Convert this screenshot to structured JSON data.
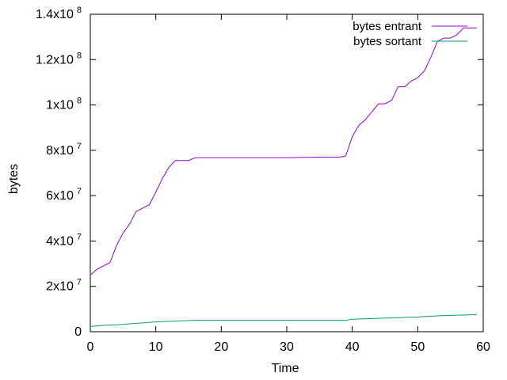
{
  "chart_data": {
    "type": "line",
    "title": "",
    "xlabel": "Time",
    "ylabel": "bytes",
    "xlim": [
      0,
      60
    ],
    "ylim": [
      0,
      140000000
    ],
    "x_ticks": [
      {
        "value": 0,
        "label": "0"
      },
      {
        "value": 10,
        "label": "10"
      },
      {
        "value": 20,
        "label": "20"
      },
      {
        "value": 30,
        "label": "30"
      },
      {
        "value": 40,
        "label": "40"
      },
      {
        "value": 50,
        "label": "50"
      },
      {
        "value": 60,
        "label": "60"
      }
    ],
    "y_ticks": [
      {
        "value": 0,
        "base": "0",
        "exp": ""
      },
      {
        "value": 20000000,
        "base": "2x10",
        "exp": "7"
      },
      {
        "value": 40000000,
        "base": "4x10",
        "exp": "7"
      },
      {
        "value": 60000000,
        "base": "6x10",
        "exp": "7"
      },
      {
        "value": 80000000,
        "base": "8x10",
        "exp": "7"
      },
      {
        "value": 100000000,
        "base": "1x10",
        "exp": "8"
      },
      {
        "value": 120000000,
        "base": "1.2x10",
        "exp": "8"
      },
      {
        "value": 140000000,
        "base": "1.4x10",
        "exp": "8"
      }
    ],
    "grid": false,
    "legend_position": "top-right",
    "series": [
      {
        "name": "bytes entrant",
        "color": "#9400d3",
        "points": [
          [
            0,
            25000000
          ],
          [
            1,
            27500000
          ],
          [
            2,
            29000000
          ],
          [
            3,
            30500000
          ],
          [
            4,
            38000000
          ],
          [
            5,
            43500000
          ],
          [
            6,
            47500000
          ],
          [
            7,
            53000000
          ],
          [
            8,
            54500000
          ],
          [
            9,
            56000000
          ],
          [
            10,
            61500000
          ],
          [
            11,
            67500000
          ],
          [
            12,
            72500000
          ],
          [
            13,
            75500000
          ],
          [
            14,
            75500000
          ],
          [
            15,
            75500000
          ],
          [
            16,
            76700000
          ],
          [
            20,
            76700000
          ],
          [
            25,
            76700000
          ],
          [
            30,
            76700000
          ],
          [
            35,
            77000000
          ],
          [
            38,
            77000000
          ],
          [
            39,
            77500000
          ],
          [
            40,
            86000000
          ],
          [
            41,
            91000000
          ],
          [
            42,
            93500000
          ],
          [
            43,
            97000000
          ],
          [
            44,
            100500000
          ],
          [
            45,
            100500000
          ],
          [
            46,
            102000000
          ],
          [
            47,
            108000000
          ],
          [
            48,
            108000000
          ],
          [
            49,
            110500000
          ],
          [
            50,
            112000000
          ],
          [
            51,
            115000000
          ],
          [
            52,
            121000000
          ],
          [
            53,
            128000000
          ],
          [
            54,
            129500000
          ],
          [
            55,
            129500000
          ],
          [
            56,
            131000000
          ],
          [
            57,
            134000000
          ],
          [
            58,
            134000000
          ],
          [
            59,
            134000000
          ]
        ]
      },
      {
        "name": "bytes sortant",
        "color": "#009e73",
        "points": [
          [
            0,
            2300000
          ],
          [
            2,
            2800000
          ],
          [
            4,
            3000000
          ],
          [
            6,
            3500000
          ],
          [
            8,
            3900000
          ],
          [
            10,
            4300000
          ],
          [
            12,
            4600000
          ],
          [
            14,
            4800000
          ],
          [
            16,
            5000000
          ],
          [
            20,
            5000000
          ],
          [
            30,
            5000000
          ],
          [
            35,
            5000000
          ],
          [
            39,
            5000000
          ],
          [
            40,
            5500000
          ],
          [
            45,
            6000000
          ],
          [
            50,
            6500000
          ],
          [
            53,
            7000000
          ],
          [
            56,
            7300000
          ],
          [
            59,
            7500000
          ]
        ]
      }
    ]
  }
}
